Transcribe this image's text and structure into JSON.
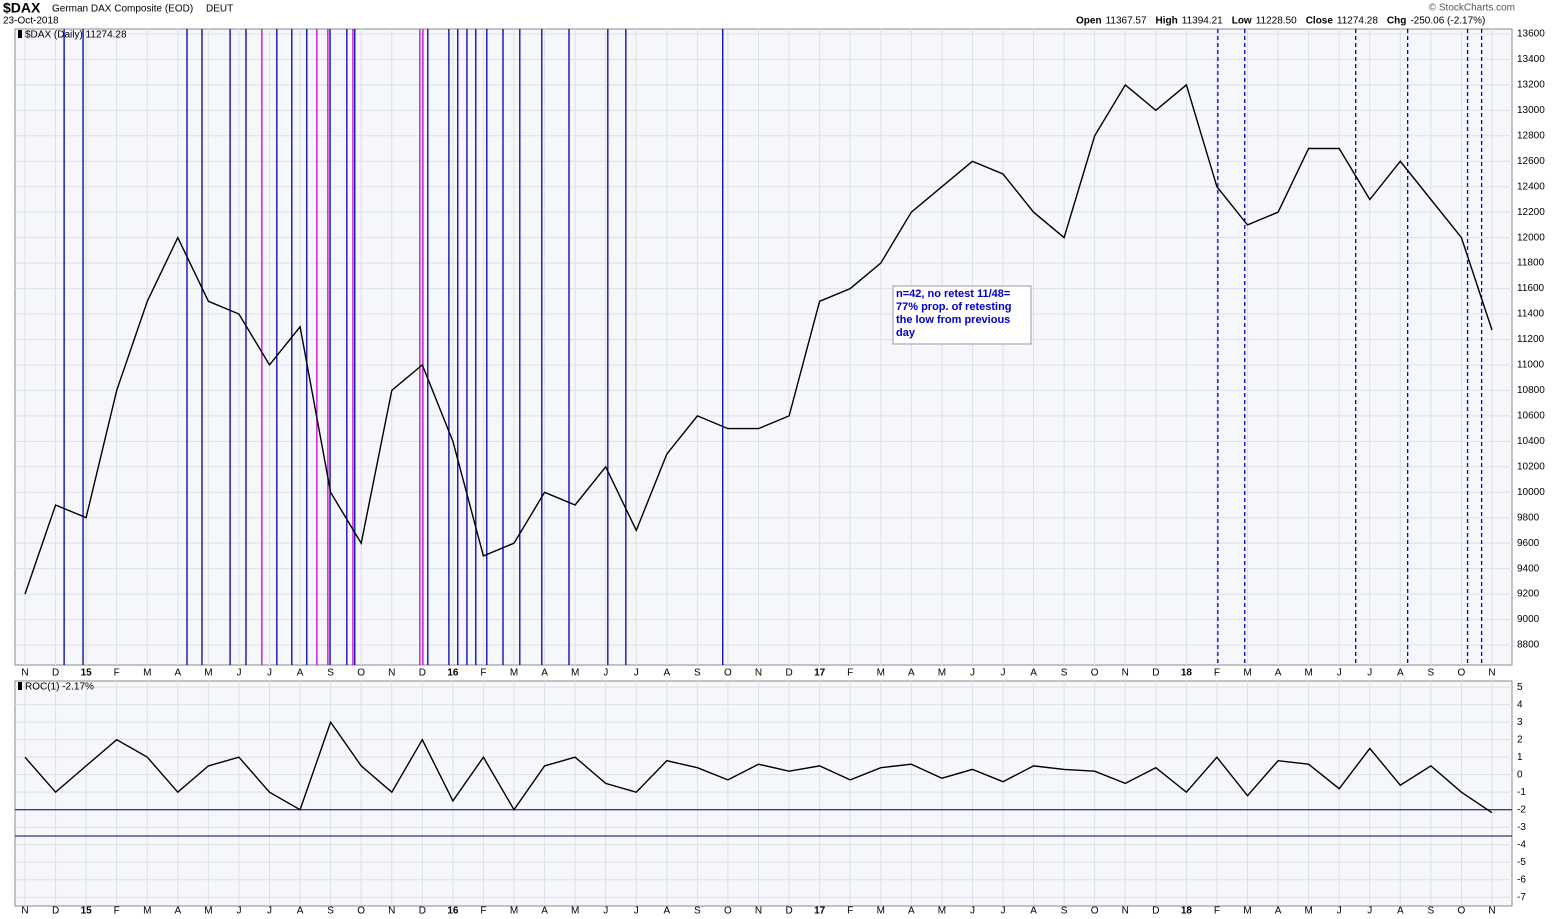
{
  "header": {
    "symbol": "$DAX",
    "name": "German DAX Composite (EOD)",
    "exchange": "DEUT",
    "date": "23-Oct-2018",
    "quote": [
      [
        "Open",
        "11367.57"
      ],
      [
        "High",
        "11394.21"
      ],
      [
        "Low",
        "11228.50"
      ],
      [
        "Close",
        "11274.28"
      ],
      [
        "Chg",
        "-250.06 (-2.17%)"
      ]
    ],
    "copyright": "© StockCharts.com"
  },
  "chart_data": [
    {
      "type": "line",
      "legend": "$DAX (Daily) 11274.28",
      "categories": [
        "N",
        "D",
        "15",
        "F",
        "M",
        "A",
        "M",
        "J",
        "J",
        "A",
        "S",
        "O",
        "N",
        "D",
        "16",
        "F",
        "M",
        "A",
        "M",
        "J",
        "J",
        "A",
        "S",
        "O",
        "N",
        "D",
        "17",
        "F",
        "M",
        "A",
        "M",
        "J",
        "J",
        "A",
        "S",
        "O",
        "N",
        "D",
        "18",
        "F",
        "M",
        "A",
        "M",
        "J",
        "J",
        "A",
        "S",
        "O",
        "N"
      ],
      "series": [
        {
          "name": "$DAX",
          "color": "#000000",
          "values": [
            9200,
            9900,
            9800,
            10800,
            11500,
            12000,
            11500,
            11400,
            11000,
            11300,
            10000,
            9600,
            10800,
            11000,
            10400,
            9500,
            9600,
            10000,
            9900,
            10200,
            9700,
            10300,
            10600,
            10500,
            10500,
            10600,
            11500,
            11600,
            11800,
            12200,
            12400,
            12600,
            12500,
            12200,
            12000,
            12800,
            13200,
            13000,
            13200,
            12400,
            12100,
            12200,
            12700,
            12700,
            12300,
            12600,
            12300,
            12000,
            11274.28
          ]
        }
      ],
      "ylim": [
        8643,
        13639
      ],
      "yticks": [
        8800,
        9000,
        9200,
        9400,
        9600,
        9800,
        10000,
        10200,
        10400,
        10600,
        10800,
        11000,
        11200,
        11400,
        11600,
        11800,
        12000,
        12200,
        12400,
        12600,
        12800,
        13000,
        13200,
        13400,
        13600
      ],
      "grid": true,
      "annotation": [
        "n=42,  no retest 11/48=",
        "77% prop. of retesting",
        "the low from previous",
        "day"
      ],
      "vlines": [
        {
          "x": 1.28,
          "color": "#0000aa",
          "dashed": false
        },
        {
          "x": 1.9,
          "color": "#0000aa",
          "dashed": false
        },
        {
          "x": 5.3,
          "color": "#0000aa",
          "dashed": false
        },
        {
          "x": 5.79,
          "color": "#0000aa",
          "dashed": false
        },
        {
          "x": 6.71,
          "color": "#0000aa",
          "dashed": false
        },
        {
          "x": 7.23,
          "color": "#0000aa",
          "dashed": false
        },
        {
          "x": 7.75,
          "color": "#cc00cc",
          "dashed": false
        },
        {
          "x": 8.24,
          "color": "#0000aa",
          "dashed": false
        },
        {
          "x": 8.73,
          "color": "#0000aa",
          "dashed": false
        },
        {
          "x": 9.22,
          "color": "#0000aa",
          "dashed": false
        },
        {
          "x": 9.55,
          "color": "#cc00cc",
          "dashed": false
        },
        {
          "x": 9.91,
          "color": "#cc00cc",
          "dashed": false
        },
        {
          "x": 9.98,
          "color": "#0000aa",
          "dashed": false
        },
        {
          "x": 10.53,
          "color": "#0000aa",
          "dashed": false
        },
        {
          "x": 10.73,
          "color": "#cc00cc",
          "dashed": false
        },
        {
          "x": 10.79,
          "color": "#0000aa",
          "dashed": false
        },
        {
          "x": 12.92,
          "color": "#cc00cc",
          "dashed": false
        },
        {
          "x": 13.02,
          "color": "#cc00cc",
          "dashed": false
        },
        {
          "x": 13.18,
          "color": "#0000aa",
          "dashed": false
        },
        {
          "x": 13.87,
          "color": "#0000aa",
          "dashed": false
        },
        {
          "x": 14.16,
          "color": "#0000aa",
          "dashed": false
        },
        {
          "x": 14.46,
          "color": "#0000aa",
          "dashed": false
        },
        {
          "x": 14.75,
          "color": "#0000aa",
          "dashed": false
        },
        {
          "x": 15.11,
          "color": "#0000aa",
          "dashed": false
        },
        {
          "x": 15.64,
          "color": "#0000aa",
          "dashed": false
        },
        {
          "x": 16.19,
          "color": "#0000aa",
          "dashed": false
        },
        {
          "x": 16.91,
          "color": "#0000aa",
          "dashed": false
        },
        {
          "x": 17.8,
          "color": "#0000aa",
          "dashed": false
        },
        {
          "x": 19.07,
          "color": "#0000aa",
          "dashed": false
        },
        {
          "x": 19.66,
          "color": "#0000aa",
          "dashed": false
        },
        {
          "x": 22.83,
          "color": "#0000aa",
          "dashed": false
        },
        {
          "x": 39.03,
          "color": "#0000cc",
          "dashed": true
        },
        {
          "x": 39.91,
          "color": "#0000cc",
          "dashed": true
        },
        {
          "x": 43.54,
          "color": "#0000cc",
          "dashed": true
        },
        {
          "x": 45.24,
          "color": "#0000cc",
          "dashed": true
        },
        {
          "x": 47.2,
          "color": "#0000cc",
          "dashed": true
        },
        {
          "x": 47.66,
          "color": "#0000cc",
          "dashed": true
        }
      ]
    },
    {
      "type": "line",
      "legend": "ROC(1) -2.17%",
      "categories": [
        "N",
        "D",
        "15",
        "F",
        "M",
        "A",
        "M",
        "J",
        "J",
        "A",
        "S",
        "O",
        "N",
        "D",
        "16",
        "F",
        "M",
        "A",
        "M",
        "J",
        "J",
        "A",
        "S",
        "O",
        "N",
        "D",
        "17",
        "F",
        "M",
        "A",
        "M",
        "J",
        "J",
        "A",
        "S",
        "O",
        "N",
        "D",
        "18",
        "F",
        "M",
        "A",
        "M",
        "J",
        "J",
        "A",
        "S",
        "O",
        "N"
      ],
      "series": [
        {
          "name": "ROC(1)",
          "color": "#000000",
          "values": [
            1,
            -1,
            0.5,
            2,
            1,
            -1,
            0.5,
            1,
            -1,
            -2,
            3,
            0.5,
            -1,
            2,
            -1.5,
            1,
            -2,
            0.5,
            1,
            -0.5,
            -1,
            0.8,
            0.4,
            -0.3,
            0.6,
            0.2,
            0.5,
            -0.3,
            0.4,
            0.6,
            -0.2,
            0.3,
            -0.4,
            0.5,
            0.3,
            0.2,
            -0.5,
            0.4,
            -1,
            1,
            -1.2,
            0.8,
            0.6,
            -0.8,
            1.5,
            -0.6,
            0.5,
            -1,
            -2.17
          ]
        }
      ],
      "ylim": [
        -7.5,
        5.35
      ],
      "yticks": [
        -7,
        -6,
        -5,
        -4,
        -3,
        -2,
        -1,
        0,
        1,
        2,
        3,
        4,
        5
      ],
      "grid": true,
      "reference_lines": [
        -2,
        -3.5
      ]
    }
  ]
}
